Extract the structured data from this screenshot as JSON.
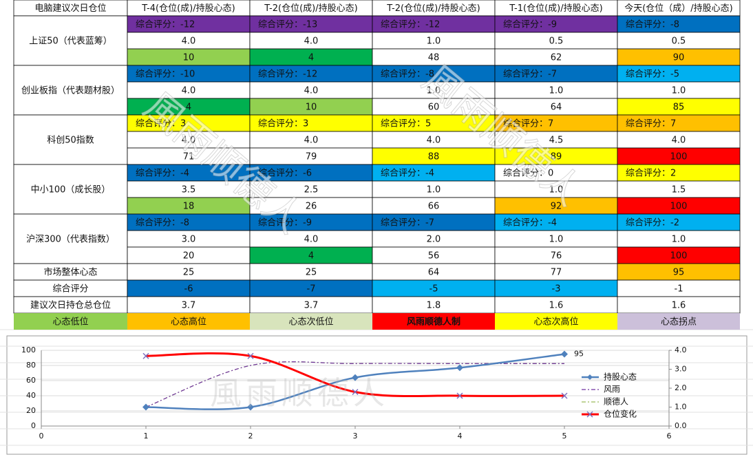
{
  "watermark": "風雨顺德人",
  "table": {
    "header": [
      "电脑建议次日仓位",
      "T-4(仓位(成)/持股心态)",
      "T-2(仓位(成)/持股心态)",
      "T-2(仓位(成)/持股心态)",
      "T-1(仓位(成)/持股心态)",
      "今天(仓位（成）/持股心态)"
    ],
    "groups": [
      {
        "label": "上证50（代表蓝筹）",
        "rows": [
          [
            {
              "text": "综合评分：-12",
              "fill": "#7030a0"
            },
            {
              "text": "综合评分：-13",
              "fill": "#7030a0"
            },
            {
              "text": "综合评分：-12",
              "fill": "#7030a0"
            },
            {
              "text": "综合评分：-9",
              "fill": "#7030a0"
            },
            {
              "text": "综合评分：-8",
              "fill": "#0070c0"
            }
          ],
          [
            {
              "text": "4.0"
            },
            {
              "text": "4.0"
            },
            {
              "text": "1.0"
            },
            {
              "text": "0.5"
            },
            {
              "text": "0.5"
            }
          ],
          [
            {
              "text": "10",
              "fill": "#92d050"
            },
            {
              "text": "4",
              "fill": "#00b050"
            },
            {
              "text": "48"
            },
            {
              "text": "62"
            },
            {
              "text": "90",
              "fill": "#ffc000"
            }
          ]
        ]
      },
      {
        "label": "创业板指（代表题材股）",
        "rows": [
          [
            {
              "text": "综合评分：-10",
              "fill": "#0070c0"
            },
            {
              "text": "综合评分：-12",
              "fill": "#0070c0"
            },
            {
              "text": "综合评分：-8",
              "fill": "#0070c0"
            },
            {
              "text": "综合评分：-7",
              "fill": "#0070c0"
            },
            {
              "text": "综合评分：-5",
              "fill": "#00b0f0"
            }
          ],
          [
            {
              "text": "4.0"
            },
            {
              "text": "4.0"
            },
            {
              "text": "1.0"
            },
            {
              "text": "1.0"
            },
            {
              "text": "1.0"
            }
          ],
          [
            {
              "text": "4",
              "fill": "#00b050"
            },
            {
              "text": "10",
              "fill": "#92d050"
            },
            {
              "text": "60"
            },
            {
              "text": "64"
            },
            {
              "text": "85",
              "fill": "#ffff00"
            }
          ]
        ]
      },
      {
        "label": "科创50指数",
        "rows": [
          [
            {
              "text": "综合评分：3",
              "fill": "#ffff00"
            },
            {
              "text": "综合评分：3",
              "fill": "#ffff00"
            },
            {
              "text": "综合评分：5",
              "fill": "#ffff00"
            },
            {
              "text": "综合评分：7",
              "fill": "#ffc000"
            },
            {
              "text": "综合评分：7",
              "fill": "#ffc000"
            }
          ],
          [
            {
              "text": "4.0"
            },
            {
              "text": "4.0"
            },
            {
              "text": "4.0"
            },
            {
              "text": "4.5"
            },
            {
              "text": "4.0"
            }
          ],
          [
            {
              "text": "71"
            },
            {
              "text": "79"
            },
            {
              "text": "88",
              "fill": "#ffff00"
            },
            {
              "text": "89",
              "fill": "#ffff00"
            },
            {
              "text": "100",
              "fill": "#ff0000"
            }
          ]
        ]
      },
      {
        "label": "中小100（成长股）",
        "rows": [
          [
            {
              "text": "综合评分：-4",
              "fill": "#0070c0"
            },
            {
              "text": "综合评分：-6",
              "fill": "#0070c0"
            },
            {
              "text": "综合评分：-4",
              "fill": "#00b0f0"
            },
            {
              "text": "综合评分：0"
            },
            {
              "text": "综合评分：2",
              "fill": "#ffff00"
            }
          ],
          [
            {
              "text": "3.5"
            },
            {
              "text": "2.5"
            },
            {
              "text": "1.0"
            },
            {
              "text": "1.0"
            },
            {
              "text": "1.5"
            }
          ],
          [
            {
              "text": "18",
              "fill": "#92d050"
            },
            {
              "text": "26"
            },
            {
              "text": "66"
            },
            {
              "text": "92",
              "fill": "#ffc000"
            },
            {
              "text": "100",
              "fill": "#ff0000"
            }
          ]
        ]
      },
      {
        "label": "沪深300（代表指数）",
        "rows": [
          [
            {
              "text": "综合评分：-8",
              "fill": "#0070c0"
            },
            {
              "text": "综合评分：-9",
              "fill": "#0070c0"
            },
            {
              "text": "综合评分：-7",
              "fill": "#0070c0"
            },
            {
              "text": "综合评分：-4",
              "fill": "#00b0f0"
            },
            {
              "text": "综合评分：-2",
              "fill": "#00b0f0"
            }
          ],
          [
            {
              "text": "3.0"
            },
            {
              "text": "4.0"
            },
            {
              "text": "2.0"
            },
            {
              "text": "1.0"
            },
            {
              "text": "1.0"
            }
          ],
          [
            {
              "text": "20"
            },
            {
              "text": "4",
              "fill": "#00b050"
            },
            {
              "text": "56"
            },
            {
              "text": "76"
            },
            {
              "text": "100",
              "fill": "#ff0000"
            }
          ]
        ]
      }
    ],
    "summary": [
      {
        "label": "市场整体心态",
        "cells": [
          {
            "text": "25"
          },
          {
            "text": "25"
          },
          {
            "text": "64"
          },
          {
            "text": "77"
          },
          {
            "text": "95",
            "fill": "#ffc000"
          }
        ]
      },
      {
        "label": "综合评分",
        "cells": [
          {
            "text": "-6",
            "fill": "#0070c0"
          },
          {
            "text": "-7",
            "fill": "#0070c0"
          },
          {
            "text": "-5",
            "fill": "#00b0f0"
          },
          {
            "text": "-3",
            "fill": "#00b0f0"
          },
          {
            "text": "-1"
          }
        ]
      },
      {
        "label": "建议次日持仓总仓位",
        "cells": [
          {
            "text": "3.7"
          },
          {
            "text": "3.7"
          },
          {
            "text": "1.8"
          },
          {
            "text": "1.6"
          },
          {
            "text": "1.6"
          }
        ]
      }
    ],
    "legend": [
      {
        "text": "心态低位",
        "fill": "#92d050"
      },
      {
        "text": "心态高位",
        "fill": "#ffc000"
      },
      {
        "text": "心态次低位",
        "fill": "#d8e4bc"
      },
      {
        "text": "风雨顺德人制",
        "fill": "#ff0000"
      },
      {
        "text": "心态次高位",
        "fill": "#ffff00"
      },
      {
        "text": "心态拐点",
        "fill": "#ccc0da"
      }
    ]
  },
  "chart_data": {
    "type": "line",
    "x": [
      1,
      2,
      3,
      4,
      5
    ],
    "xlim": [
      0,
      6
    ],
    "xticks": [
      0,
      1,
      2,
      3,
      4,
      5,
      6
    ],
    "ylim": [
      0,
      100
    ],
    "yticks": [
      0,
      20,
      40,
      60,
      80,
      100
    ],
    "y2lim": [
      0,
      4
    ],
    "y2ticks": [
      {
        "value": 0,
        "label": "0.0"
      },
      {
        "value": 1,
        "label": "1.0"
      },
      {
        "value": 2,
        "label": "2.0"
      },
      {
        "value": 3,
        "label": "3.0"
      },
      {
        "value": 4,
        "label": "4.0"
      }
    ],
    "grid": true,
    "legend": "right",
    "series": [
      {
        "name": "持股心态",
        "color": "#4f81bd",
        "values": [
          25,
          25,
          64,
          77,
          95
        ]
      },
      {
        "name": "风雨",
        "color": "#7030a0",
        "axis": "y2",
        "values": [
          1.0,
          3.2,
          3.3,
          3.3,
          3.3
        ]
      },
      {
        "name": "顺德人",
        "color": "#9bbb59",
        "axis": "y2",
        "values": [
          1.0,
          3.2,
          3.3,
          3.3,
          3.3
        ]
      },
      {
        "name": "仓位变化",
        "color": "#ff0000",
        "axis": "y2",
        "values": [
          3.7,
          3.7,
          1.8,
          1.6,
          1.6
        ]
      }
    ]
  }
}
